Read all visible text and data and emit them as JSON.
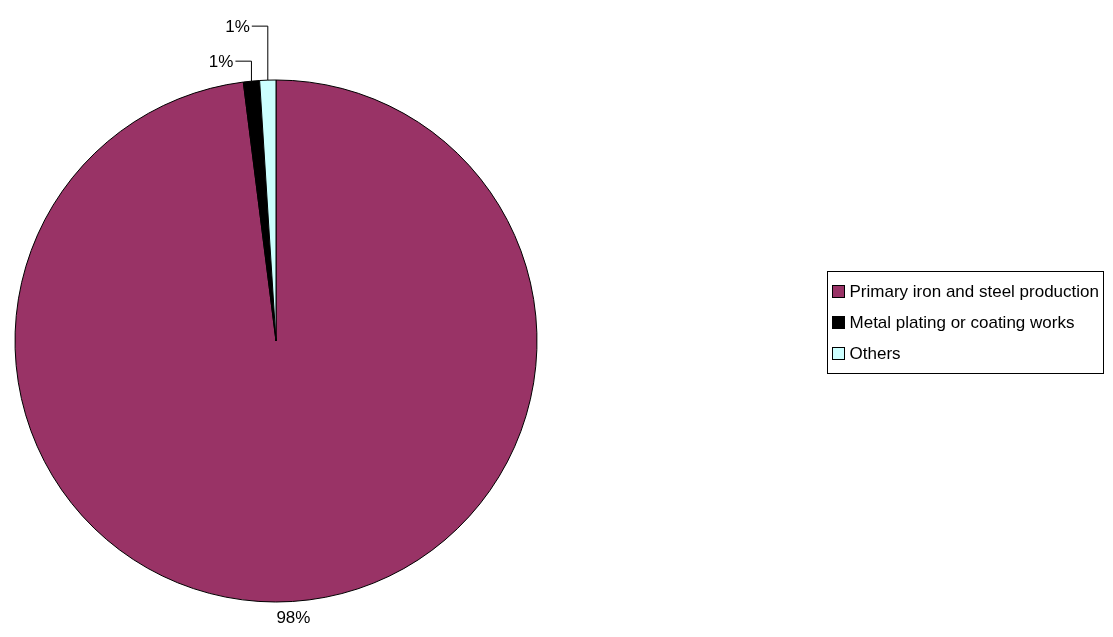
{
  "chart_data": {
    "type": "pie",
    "categories": [
      "Primary iron and steel production",
      "Metal plating or coating works",
      "Others"
    ],
    "values": [
      98,
      1,
      1
    ],
    "colors": [
      "#993366",
      "#000000",
      "#ccffff"
    ],
    "value_labels": [
      "98%",
      "1%",
      "1%"
    ],
    "legend": "right"
  }
}
